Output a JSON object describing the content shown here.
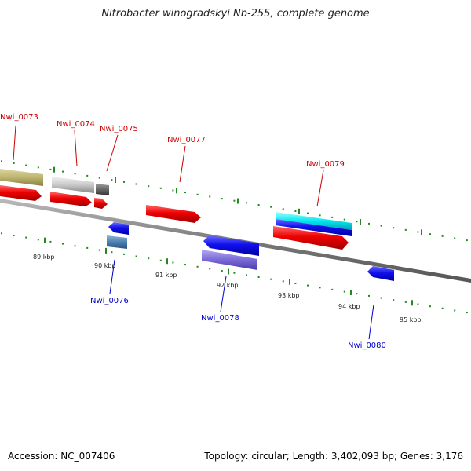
{
  "title": "Nitrobacter winogradskyi Nb-255, complete genome",
  "footer": {
    "accession": "Accession: NC_007406",
    "summary": "Topology: circular; Length: 3,402,093 bp; Genes: 3,176"
  },
  "colors": {
    "forward_cds": "#e00000",
    "reverse_cds": "#1010e0",
    "label_forward": "#cc0000",
    "label_reverse": "#0000cc",
    "tick": "#228822",
    "backbone": "#888888"
  },
  "scale_labels": [
    "89 kbp",
    "90 kbp",
    "91 kbp",
    "92 kbp",
    "93 kbp",
    "94 kbp",
    "95 kbp"
  ],
  "genes": {
    "top": [
      {
        "label": "Nwi_0073"
      },
      {
        "label": "Nwi_0074"
      },
      {
        "label": "Nwi_0075"
      },
      {
        "label": "Nwi_0077"
      },
      {
        "label": "Nwi_0079"
      }
    ],
    "bottom": [
      {
        "label": "Nwi_0076"
      },
      {
        "label": "Nwi_0078"
      },
      {
        "label": "Nwi_0080"
      }
    ]
  }
}
